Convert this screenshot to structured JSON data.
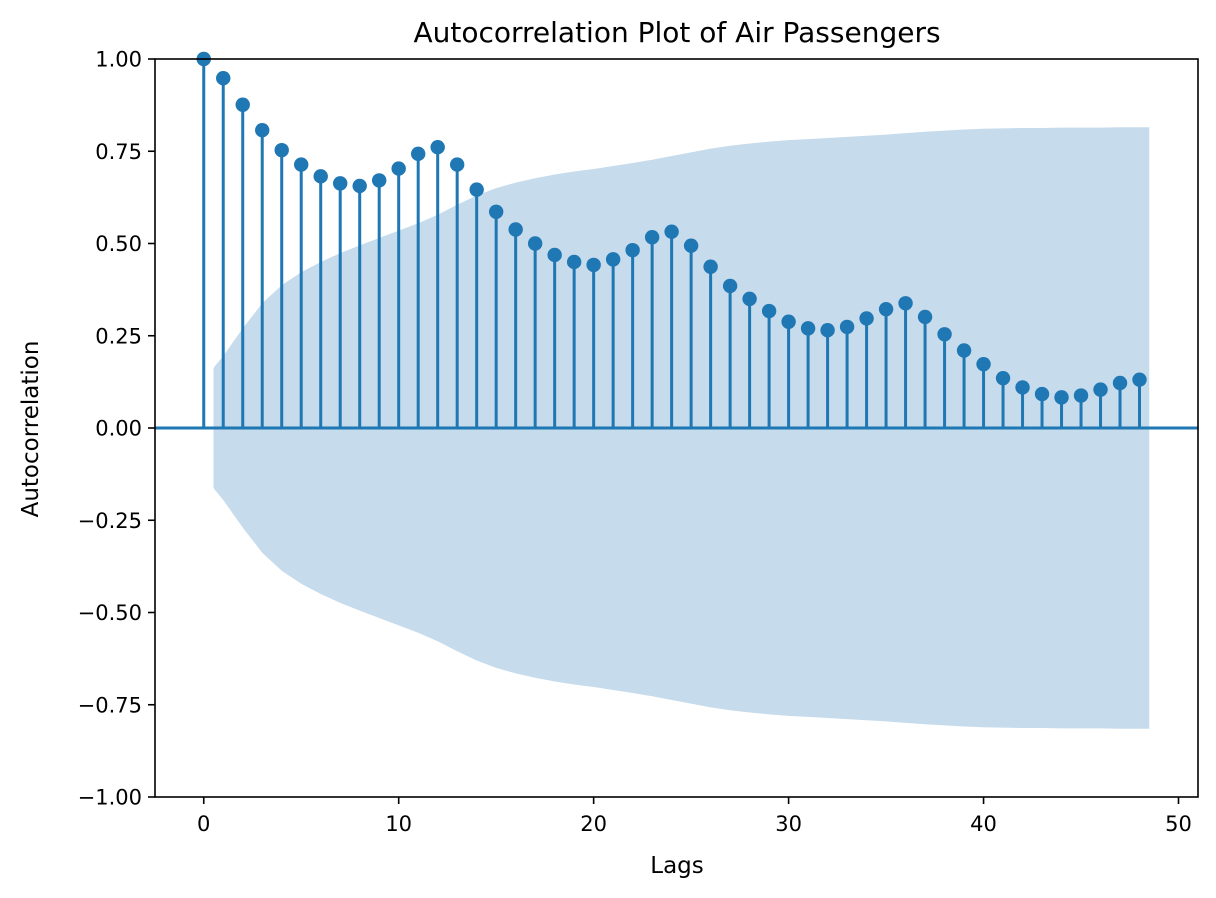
{
  "chart_data": {
    "type": "stem",
    "title": "Autocorrelation Plot of Air Passengers",
    "xlabel": "Lags",
    "ylabel": "Autocorrelation",
    "xlim": [
      -2.5,
      51
    ],
    "ylim": [
      -1.0,
      1.0
    ],
    "xticks": [
      0,
      10,
      20,
      30,
      40,
      50
    ],
    "xtick_labels": [
      "0",
      "10",
      "20",
      "30",
      "40",
      "50"
    ],
    "yticks": [
      1.0,
      0.75,
      0.5,
      0.25,
      0.0,
      -0.25,
      -0.5,
      -0.75,
      -1.0
    ],
    "ytick_labels": [
      "1.00",
      "0.75",
      "0.50",
      "0.25",
      "0.00",
      "−0.25",
      "−0.50",
      "−0.75",
      "−1.00"
    ],
    "grid": false,
    "colors": {
      "stem": "#1f77b4",
      "confidence_band": "#c6dbec"
    },
    "lags": [
      0,
      1,
      2,
      3,
      4,
      5,
      6,
      7,
      8,
      9,
      10,
      11,
      12,
      13,
      14,
      15,
      16,
      17,
      18,
      19,
      20,
      21,
      22,
      23,
      24,
      25,
      26,
      27,
      28,
      29,
      30,
      31,
      32,
      33,
      34,
      35,
      36,
      37,
      38,
      39,
      40,
      41,
      42,
      43,
      44,
      45,
      46,
      47,
      48
    ],
    "acf": [
      1.0,
      0.948,
      0.876,
      0.807,
      0.753,
      0.714,
      0.682,
      0.663,
      0.656,
      0.671,
      0.703,
      0.743,
      0.761,
      0.714,
      0.646,
      0.586,
      0.538,
      0.5,
      0.469,
      0.45,
      0.442,
      0.457,
      0.482,
      0.517,
      0.532,
      0.494,
      0.437,
      0.385,
      0.35,
      0.317,
      0.288,
      0.27,
      0.265,
      0.274,
      0.297,
      0.322,
      0.338,
      0.301,
      0.254,
      0.21,
      0.173,
      0.135,
      0.11,
      0.092,
      0.083,
      0.088,
      0.104,
      0.122,
      0.131
    ],
    "confidence_band": {
      "lags": [
        0.5,
        1,
        2,
        3,
        4,
        5,
        6,
        7,
        8,
        9,
        10,
        11,
        12,
        13,
        14,
        15,
        16,
        17,
        18,
        19,
        20,
        21,
        22,
        23,
        24,
        25,
        26,
        27,
        28,
        29,
        30,
        31,
        32,
        33,
        34,
        35,
        36,
        37,
        38,
        39,
        40,
        41,
        42,
        43,
        44,
        45,
        46,
        47,
        48,
        48.5
      ],
      "upper": [
        0.163,
        0.195,
        0.27,
        0.338,
        0.387,
        0.422,
        0.45,
        0.474,
        0.495,
        0.515,
        0.535,
        0.555,
        0.578,
        0.605,
        0.63,
        0.65,
        0.665,
        0.677,
        0.687,
        0.695,
        0.702,
        0.71,
        0.718,
        0.727,
        0.737,
        0.747,
        0.757,
        0.765,
        0.771,
        0.776,
        0.78,
        0.783,
        0.786,
        0.789,
        0.792,
        0.795,
        0.799,
        0.803,
        0.806,
        0.809,
        0.811,
        0.812,
        0.813,
        0.813,
        0.814,
        0.814,
        0.814,
        0.815,
        0.815,
        0.815
      ]
    }
  }
}
